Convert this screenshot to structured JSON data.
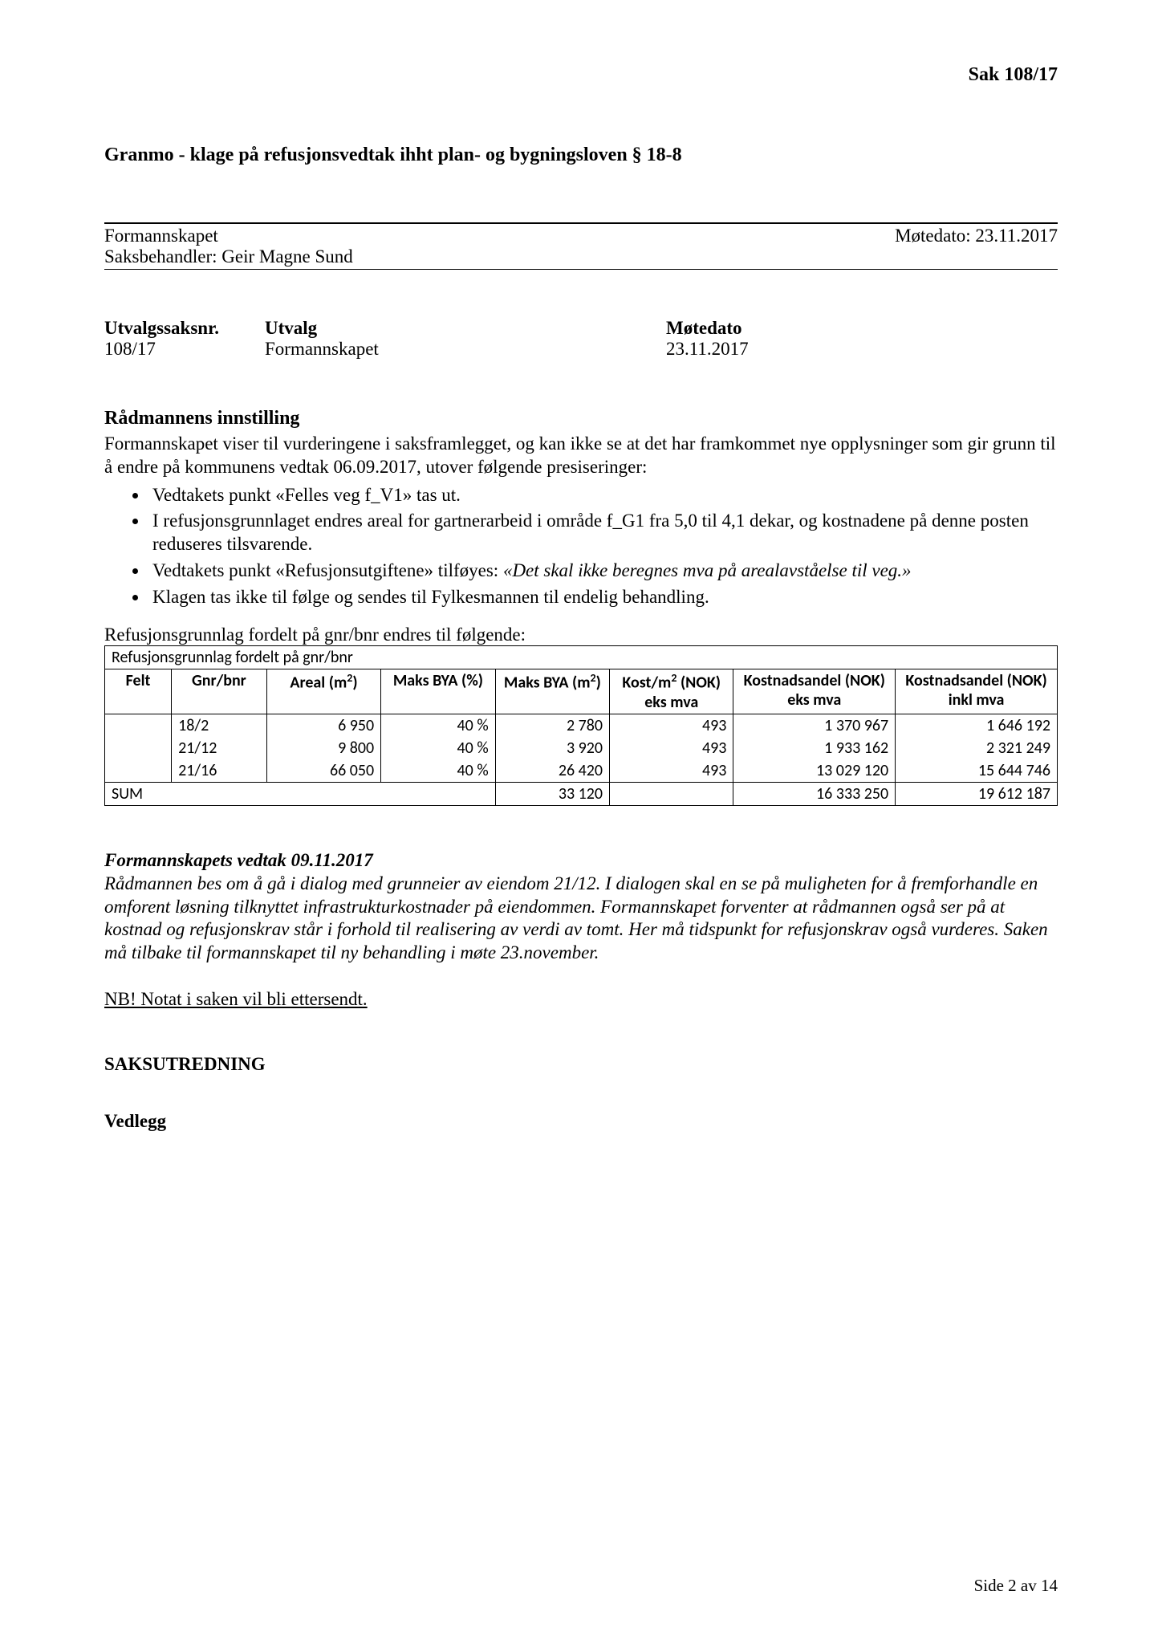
{
  "header": {
    "case_label": "Sak  108/17"
  },
  "title": "Granmo - klage på refusjonsvedtak ihht plan- og bygningsloven § 18-8",
  "meta": {
    "committee": "Formannskapet",
    "meeting_label": "Møtedato: 23.11.2017",
    "case_officer": "Saksbehandler: Geir Magne Sund"
  },
  "case_row": {
    "col1_head": "Utvalgssaksnr.",
    "col2_head": "Utvalg",
    "col3_head": "Møtedato",
    "col1_val": "108/17",
    "col2_val": "Formannskapet",
    "col3_val": "23.11.2017"
  },
  "innstilling": {
    "heading": "Rådmannens innstilling",
    "intro": "Formannskapet viser til vurderingene i saksframlegget, og kan ikke se at det har framkommet nye opplysninger som gir grunn til å endre på kommunens vedtak 06.09.2017, utover følgende presiseringer:",
    "bullets": [
      {
        "pre": "Vedtakets punkt «Felles veg f_V1» tas ut.",
        "ital": ""
      },
      {
        "pre": " I refusjonsgrunnlaget endres areal for gartnerarbeid i område f_G1 fra 5,0 til 4,1 dekar, og kostnadene på denne posten reduseres tilsvarende.",
        "ital": ""
      },
      {
        "pre": "Vedtakets punkt «Refusjonsutgiftene» tilføyes: ",
        "ital": "«Det skal ikke beregnes mva på arealavståelse til veg.»"
      },
      {
        "pre": "Klagen tas ikke til følge og sendes til Fylkesmannen til endelig behandling.",
        "ital": ""
      }
    ]
  },
  "table": {
    "intro": "Refusjonsgrunnlag fordelt på gnr/bnr endres til følgende:",
    "caption": "Refusjonsgrunnlag fordelt på gnr/bnr",
    "columns": [
      "Felt",
      "Gnr/bnr",
      "Areal (m²)",
      "Maks BYA (%)",
      "Maks BYA (m²)",
      "Kost/m² (NOK) eks mva",
      "Kostnadsandel (NOK) eks mva",
      "Kostnadsandel (NOK) inkl mva"
    ],
    "col_widths_pct": [
      7,
      10,
      12,
      12,
      12,
      13,
      17,
      17
    ],
    "rows": [
      [
        "",
        "18/2",
        "6 950",
        "40 %",
        "2 780",
        "493",
        "1 370 967",
        "1 646 192"
      ],
      [
        "",
        "21/12",
        "9 800",
        "40 %",
        "3 920",
        "493",
        "1 933 162",
        "2 321 249"
      ],
      [
        "",
        "21/16",
        "66 050",
        "40 %",
        "26 420",
        "493",
        "13 029 120",
        "15 644 746"
      ]
    ],
    "sum_row": [
      "SUM",
      "",
      "",
      "",
      "33 120",
      "",
      "16 333 250",
      "19 612 187"
    ],
    "header_bg": "#ffffff",
    "border_color": "#000000"
  },
  "vedtak": {
    "heading": "Formannskapets vedtak 09.11.2017",
    "text": "Rådmannen bes om å gå i dialog med grunneier av eiendom 21/12. I dialogen skal en se på muligheten for å fremforhandle en omforent løsning tilknyttet infrastrukturkostnader på eiendommen. Formannskapet forventer at rådmannen også ser på at kostnad og refusjonskrav står i forhold til realisering av verdi av tomt. Her må tidspunkt for refusjonskrav også vurderes. Saken må tilbake til formannskapet til ny behandling i møte 23.november."
  },
  "nb": "NB! Notat i saken vil bli ettersendt.",
  "saksutredning": "SAKSUTREDNING",
  "vedlegg": "Vedlegg",
  "footer": "Side 2 av 14"
}
